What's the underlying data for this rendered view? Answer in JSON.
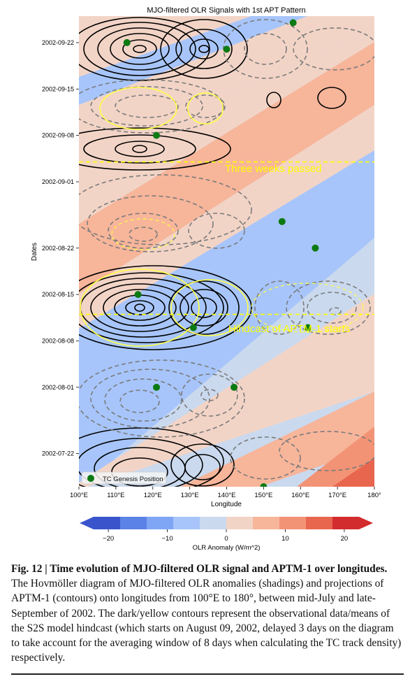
{
  "figure": {
    "title": "MJO-filtered OLR Signals with 1st APT Pattern",
    "ylabel": "Dates",
    "xlabel": "Longitude",
    "annotations": {
      "three_weeks": "Three weeks passed",
      "hindcast": "Hindcast of APTM-1 starts"
    },
    "legend_label": "TC Genesis Position",
    "colorbar_label": "OLR Anomaly (W/m^2)"
  },
  "chart_data": {
    "type": "heatmap",
    "title": "MJO-filtered OLR Signals with 1st APT Pattern",
    "xlabel": "Longitude",
    "ylabel": "Dates",
    "x_ticks": [
      "100°E",
      "110°E",
      "120°E",
      "130°E",
      "140°E",
      "150°E",
      "160°E",
      "170°E",
      "180°"
    ],
    "xlim": [
      100,
      180
    ],
    "y_ticks": [
      "2002-07-22",
      "2002-08-01",
      "2002-08-08",
      "2002-08-15",
      "2002-08-22",
      "2002-09-01",
      "2002-09-08",
      "2002-09-15",
      "2002-09-22"
    ],
    "ylim": [
      "2002-07-17",
      "2002-09-26"
    ],
    "colorbar": {
      "label": "OLR Anomaly (W/m^2)",
      "ticks": [
        -20,
        -10,
        0,
        10,
        20
      ],
      "levels": [
        -27,
        -22.5,
        -18,
        -13.5,
        -9,
        -4.5,
        0,
        4.5,
        9,
        13.5,
        18,
        22.5,
        27
      ],
      "colors": [
        "#3a55cc",
        "#5b82e6",
        "#7ea6f4",
        "#a7c5fa",
        "#cad9ee",
        "#f2d4c6",
        "#f7b59a",
        "#f39375",
        "#e8664e",
        "#d22c2f"
      ],
      "extend": "both"
    },
    "hlines": [
      {
        "date": "2002-09-04",
        "label": "Three weeks passed",
        "color": "#ffff00",
        "style": "dashed"
      },
      {
        "date": "2002-08-12",
        "label": "Hindcast of APTM-1 starts",
        "color": "#ffff00",
        "style": "dashed"
      }
    ],
    "contour_series": [
      {
        "name": "observational data",
        "color": "#000000"
      },
      {
        "name": "means of the S2S model hindcast",
        "color": "#ffff00"
      }
    ],
    "tc_genesis_points": [
      {
        "lon": 158,
        "date": "2002-09-25"
      },
      {
        "lon": 113,
        "date": "2002-09-22"
      },
      {
        "lon": 140,
        "date": "2002-09-21"
      },
      {
        "lon": 121,
        "date": "2002-09-08"
      },
      {
        "lon": 155,
        "date": "2002-08-26"
      },
      {
        "lon": 164,
        "date": "2002-08-22"
      },
      {
        "lon": 116,
        "date": "2002-08-15"
      },
      {
        "lon": 131,
        "date": "2002-08-10"
      },
      {
        "lon": 162,
        "date": "2002-08-10"
      },
      {
        "lon": 142,
        "date": "2002-08-01"
      },
      {
        "lon": 121,
        "date": "2002-08-01"
      },
      {
        "lon": 150,
        "date": "2002-07-17"
      }
    ],
    "legend": {
      "position": "lower-left",
      "entries": [
        "TC Genesis Position"
      ]
    }
  },
  "caption": {
    "bold": "Fig. 12 | Time evolution of MJO-filtered OLR signal and APTM-1 over longitudes.",
    "text": " The Hovmöller diagram of MJO-filtered OLR anomalies (shadings) and projections of APTM-1 (contours) onto longitudes from 100°E to 180°, between mid-July and late-September of 2002. The dark/yellow contours represent the observational data/means of the S2S model hindcast (which starts on August 09, 2002, delayed 3 days on the diagram to take account for the averaging window of 8 days when calculating the TC track density) respectively."
  }
}
